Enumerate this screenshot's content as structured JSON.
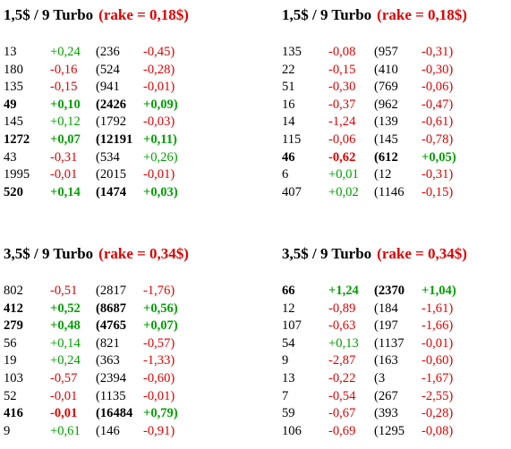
{
  "colors": {
    "positive": "#00a000",
    "negative": "#e00000",
    "text": "#000000"
  },
  "blocks": [
    {
      "title": "1,5$ / 9 Turbo",
      "rake": "(rake = 0,18$)",
      "rows": [
        {
          "a": "13",
          "b": "+0,24",
          "c": "(236",
          "d": "-0,45)",
          "bold": false
        },
        {
          "a": "180",
          "b": "-0,16",
          "c": "(524",
          "d": "-0,28)",
          "bold": false
        },
        {
          "a": "135",
          "b": "-0,15",
          "c": "(941",
          "d": "-0,01)",
          "bold": false
        },
        {
          "a": "49",
          "b": "+0,10",
          "c": "(2426",
          "d": "+0,09)",
          "bold": true
        },
        {
          "a": "145",
          "b": "+0,12",
          "c": "(1792",
          "d": "-0,03)",
          "bold": false
        },
        {
          "a": "1272",
          "b": "+0,07",
          "c": "(12191",
          "d": "+0,11)",
          "bold": true
        },
        {
          "a": "43",
          "b": "-0,31",
          "c": "(534",
          "d": "+0,26)",
          "bold": false
        },
        {
          "a": "1995",
          "b": "-0,01",
          "c": "(2015",
          "d": "-0,01)",
          "bold": false
        },
        {
          "a": "520",
          "b": "+0,14",
          "c": "(1474",
          "d": "+0,03)",
          "bold": true
        }
      ]
    },
    {
      "title": "1,5$ / 9 Turbo",
      "rake": "(rake = 0,18$)",
      "rows": [
        {
          "a": "135",
          "b": "-0,08",
          "c": "(957",
          "d": "-0,31)",
          "bold": false
        },
        {
          "a": "22",
          "b": "-0,15",
          "c": "(410",
          "d": "-0,30)",
          "bold": false
        },
        {
          "a": "51",
          "b": "-0,30",
          "c": "(769",
          "d": "-0,06)",
          "bold": false
        },
        {
          "a": "16",
          "b": "-0,37",
          "c": "(962",
          "d": "-0,47)",
          "bold": false
        },
        {
          "a": "14",
          "b": "-1,24",
          "c": "(139",
          "d": "-0,61)",
          "bold": false
        },
        {
          "a": "115",
          "b": "-0,06",
          "c": "(145",
          "d": "-0,78)",
          "bold": false
        },
        {
          "a": "46",
          "b": "-0,62",
          "c": "(612",
          "d": "+0,05)",
          "bold": true
        },
        {
          "a": "6",
          "b": "+0,01",
          "c": "(12",
          "d": "-0,31)",
          "bold": false
        },
        {
          "a": "407",
          "b": "+0,02",
          "c": "(1146",
          "d": "-0,15)",
          "bold": false
        }
      ]
    },
    {
      "title": "3,5$ / 9 Turbo",
      "rake": "(rake = 0,34$)",
      "rows": [
        {
          "a": "802",
          "b": "-0,51",
          "c": "(2817",
          "d": "-1,76)",
          "bold": false
        },
        {
          "a": "412",
          "b": "+0,52",
          "c": "(8687",
          "d": "+0,56)",
          "bold": true
        },
        {
          "a": "279",
          "b": "+0,48",
          "c": "(4765",
          "d": "+0,07)",
          "bold": true
        },
        {
          "a": "56",
          "b": "+0,14",
          "c": "(821",
          "d": "-0,57)",
          "bold": false
        },
        {
          "a": "19",
          "b": "+0,24",
          "c": "(363",
          "d": "-1,33)",
          "bold": false
        },
        {
          "a": "103",
          "b": "-0,57",
          "c": "(2394",
          "d": "-0,60)",
          "bold": false
        },
        {
          "a": "52",
          "b": "-0,01",
          "c": "(1135",
          "d": "-0,01)",
          "bold": false
        },
        {
          "a": "416",
          "b": "-0,01",
          "c": "(16484",
          "d": "+0,79)",
          "bold": true
        },
        {
          "a": "9",
          "b": "+0,61",
          "c": "(146",
          "d": "-0,91)",
          "bold": false
        }
      ]
    },
    {
      "title": "3,5$ / 9 Turbo",
      "rake": "(rake = 0,34$)",
      "rows": [
        {
          "a": "66",
          "b": "+1,24",
          "c": "(2370",
          "d": "+1,04)",
          "bold": true
        },
        {
          "a": "12",
          "b": "-0,89",
          "c": "(184",
          "d": "-1,61)",
          "bold": false
        },
        {
          "a": "107",
          "b": "-0,63",
          "c": "(197",
          "d": "-1,66)",
          "bold": false
        },
        {
          "a": "54",
          "b": "+0,13",
          "c": "(1137",
          "d": "-0,01)",
          "bold": false
        },
        {
          "a": "9",
          "b": "-2,87",
          "c": "(163",
          "d": "-0,60)",
          "bold": false
        },
        {
          "a": "13",
          "b": "-0,22",
          "c": "(3",
          "d": "-1,67)",
          "bold": false
        },
        {
          "a": "7",
          "b": "-0,54",
          "c": "(267",
          "d": "-2,55)",
          "bold": false
        },
        {
          "a": "59",
          "b": "-0,67",
          "c": "(393",
          "d": "-0,28)",
          "bold": false
        },
        {
          "a": "106",
          "b": "-0,69",
          "c": "(1295",
          "d": "-0,08)",
          "bold": false
        }
      ]
    }
  ]
}
